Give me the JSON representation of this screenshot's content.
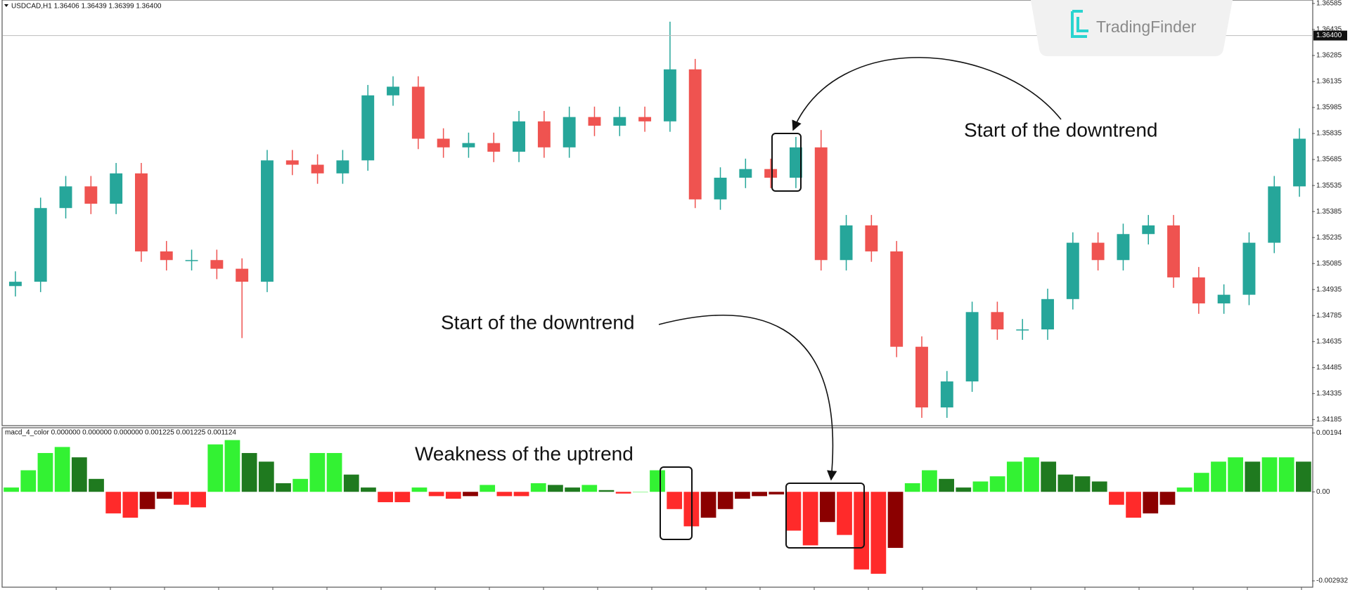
{
  "window": {
    "symbol_header": "USDCAD,H1  1.36406 1.36439 1.36399 1.36400",
    "logo": "TradingFinder"
  },
  "chart_data": [
    {
      "type": "candlestick",
      "ylim": [
        1.3415,
        1.36605
      ],
      "yticks": [
        1.36585,
        1.36435,
        1.36285,
        1.36135,
        1.35985,
        1.35835,
        1.35685,
        1.35535,
        1.35385,
        1.35235,
        1.35085,
        1.34935,
        1.34785,
        1.34635,
        1.34485,
        1.34335,
        1.34185
      ],
      "price_tag": {
        "value": 1.364,
        "label": "1.36400"
      },
      "up_color": "#26a69a",
      "down_color": "#ef5350",
      "open": [
        1.34955,
        1.3498,
        1.35405,
        1.3553,
        1.3543,
        1.35605,
        1.35155,
        1.35105,
        1.35105,
        1.35055,
        1.3498,
        1.3568,
        1.35655,
        1.35605,
        1.3568,
        1.36055,
        1.36105,
        1.35805,
        1.35755,
        1.3578,
        1.3573,
        1.35905,
        1.35755,
        1.3593,
        1.3588,
        1.3593,
        1.35905,
        1.36205,
        1.35455,
        1.3558,
        1.3563,
        1.3558,
        1.35755,
        1.35105,
        1.35305,
        1.35155,
        1.34605,
        1.34255,
        1.34405,
        1.34805,
        1.34705,
        1.34705,
        1.3488,
        1.35205,
        1.35105,
        1.35255,
        1.35305,
        1.35005,
        1.34855,
        1.34905,
        1.35205,
        1.3553
      ],
      "high": [
        1.3504,
        1.35465,
        1.3559,
        1.3559,
        1.35665,
        1.35665,
        1.35215,
        1.35165,
        1.35165,
        1.35115,
        1.3574,
        1.3574,
        1.35715,
        1.3574,
        1.36115,
        1.36165,
        1.36165,
        1.35865,
        1.3584,
        1.3584,
        1.35965,
        1.35965,
        1.3599,
        1.3599,
        1.3599,
        1.3599,
        1.3648,
        1.36265,
        1.3564,
        1.3569,
        1.3569,
        1.35815,
        1.35855,
        1.35365,
        1.35365,
        1.35215,
        1.34665,
        1.34465,
        1.34865,
        1.34865,
        1.34765,
        1.3494,
        1.35265,
        1.35265,
        1.35315,
        1.35365,
        1.35365,
        1.35065,
        1.34965,
        1.35265,
        1.3559,
        1.35865
      ],
      "low": [
        1.34895,
        1.3492,
        1.35345,
        1.3537,
        1.3537,
        1.35095,
        1.35045,
        1.35045,
        1.34995,
        1.34655,
        1.3492,
        1.35595,
        1.35545,
        1.35545,
        1.3562,
        1.35995,
        1.35745,
        1.35695,
        1.35695,
        1.3567,
        1.3567,
        1.35695,
        1.35695,
        1.3582,
        1.3582,
        1.35845,
        1.35845,
        1.35405,
        1.35395,
        1.3552,
        1.3552,
        1.3552,
        1.35045,
        1.35045,
        1.35095,
        1.34545,
        1.34195,
        1.34195,
        1.34345,
        1.34645,
        1.34645,
        1.34645,
        1.3482,
        1.35045,
        1.35045,
        1.35195,
        1.34945,
        1.34795,
        1.34795,
        1.34845,
        1.35145,
        1.3547
      ],
      "close": [
        1.3498,
        1.35405,
        1.3553,
        1.3543,
        1.35605,
        1.35155,
        1.35105,
        1.35105,
        1.35055,
        1.3498,
        1.3568,
        1.35655,
        1.35605,
        1.3568,
        1.36055,
        1.36105,
        1.35805,
        1.35755,
        1.3578,
        1.3573,
        1.35905,
        1.35755,
        1.3593,
        1.3588,
        1.3593,
        1.35905,
        1.36205,
        1.35455,
        1.3558,
        1.3563,
        1.3558,
        1.35755,
        1.35105,
        1.35305,
        1.35155,
        1.34605,
        1.34255,
        1.34405,
        1.34805,
        1.34705,
        1.34705,
        1.3488,
        1.35205,
        1.35105,
        1.35255,
        1.35305,
        1.35005,
        1.34855,
        1.34905,
        1.35205,
        1.3553,
        1.35805
      ],
      "annotation": "Start of the downtrend"
    },
    {
      "type": "histogram_oscillator",
      "title": "macd_4_color 0.000000 0.000000 0.000000 0.001225 0.001225 0.001124",
      "ylim": [
        -0.00314,
        0.00211
      ],
      "yticks": [
        0.00194,
        {
          "value": 0,
          "label": "0.00"
        },
        -0.002932
      ],
      "colors": {
        "up_rising": "#33f233",
        "up_falling": "#1f7a1f",
        "down_falling": "#ff2a2a",
        "down_rising": "#8b0000"
      },
      "values": [
        0.000142,
        0.00071,
        0.001278,
        0.001477,
        0.001136,
        0.000426,
        -0.00071,
        -0.000852,
        -0.000568,
        -0.000227,
        -0.000426,
        -0.000511,
        0.001562,
        0.001704,
        0.001278,
        0.000994,
        0.000284,
        0.000426,
        0.001278,
        0.001278,
        0.000568,
        0.000142,
        -0.000341,
        -0.000341,
        0.000142,
        -0.000142,
        -0.000227,
        -0.000142,
        0.000227,
        -0.000142,
        -0.000142,
        0.000284,
        0.000227,
        0.000142,
        0.000227,
        5.7e-05,
        -5.7e-05,
        0,
        0.00071,
        -0.000568,
        -0.001136,
        -0.000852,
        -0.000568,
        -0.000227,
        -0.000142,
        -8.5e-05,
        -0.001278,
        -0.001761,
        -0.000994,
        -0.00142,
        -0.002556,
        -0.002698,
        -0.001846,
        0.000284,
        0.00071,
        0.000426,
        0.000142,
        0.000341,
        0.000511,
        0.000994,
        0.001136,
        0.000994,
        0.000568,
        0.000511,
        0.000341,
        -0.000426,
        -0.000852,
        -0.00071,
        -0.000426,
        0.000142,
        0.000625,
        0.000994,
        0.001136,
        0.000994,
        0.001136,
        0.001136,
        0.000994
      ],
      "annotations": [
        "Start of the downtrend",
        "Weakness of the uptrend"
      ]
    }
  ]
}
